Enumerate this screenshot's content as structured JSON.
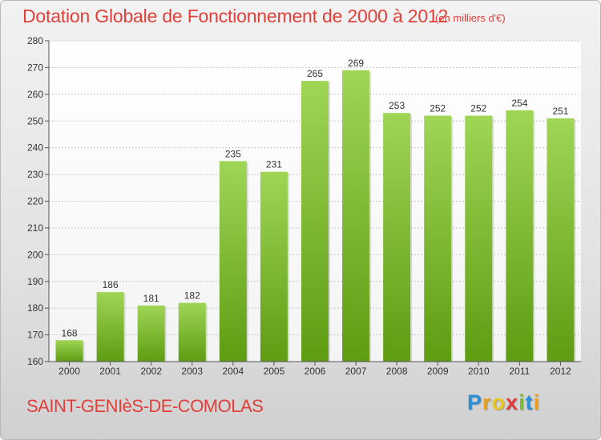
{
  "header": {
    "title": "Dotation Globale de Fonctionnement de 2000 à 2012",
    "subtitle": "(en milliers d'€)"
  },
  "footer": {
    "commune": "SAINT-GENIèS-DE-COMOLAS",
    "logo_letters": [
      "P",
      "r",
      "o",
      "x",
      "i",
      "t",
      "i"
    ],
    "logo_colors": [
      "#2a8fd6",
      "#e8a020",
      "#e8c820",
      "#e03a3a",
      "#7cbf2a",
      "#2a8fd6",
      "#e8a020"
    ]
  },
  "colors": {
    "bar_top": "#9fd655",
    "bar_bottom": "#5e9c12",
    "grid": "#c8c8c8",
    "axis": "#555555",
    "text": "#333333"
  },
  "chart_data": {
    "type": "bar",
    "categories": [
      "2000",
      "2001",
      "2002",
      "2003",
      "2004",
      "2005",
      "2006",
      "2007",
      "2008",
      "2009",
      "2010",
      "2011",
      "2012"
    ],
    "values": [
      168,
      186,
      181,
      182,
      235,
      231,
      265,
      269,
      253,
      252,
      252,
      254,
      251
    ],
    "data_labels": [
      "168",
      "186",
      "181",
      "182",
      "235",
      "231",
      "265",
      "269",
      "253",
      "252",
      "252",
      "254",
      "251"
    ],
    "title": "Dotation Globale de Fonctionnement de 2000 à 2012",
    "xlabel": "",
    "ylabel": "",
    "ylim": [
      160,
      280
    ],
    "yticks": [
      160,
      170,
      180,
      190,
      200,
      210,
      220,
      230,
      240,
      250,
      260,
      270,
      280
    ],
    "grid": true,
    "legend": "none"
  }
}
